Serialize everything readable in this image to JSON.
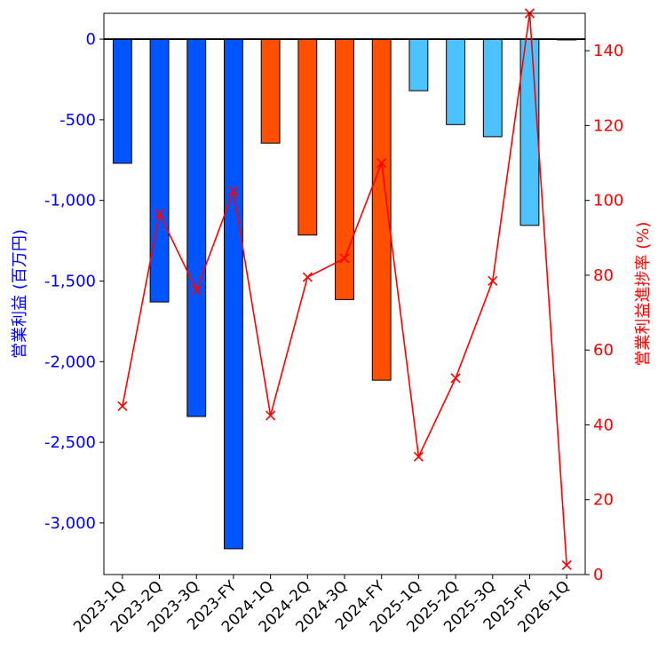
{
  "chart_data": {
    "type": "bar+line",
    "categories": [
      "2023-1Q",
      "2023-2Q",
      "2023-3Q",
      "2023-FY",
      "2024-1Q",
      "2024-2Q",
      "2024-3Q",
      "2024-FY",
      "2025-1Q",
      "2025-2Q",
      "2025-3Q",
      "2025-FY",
      "2026-1Q"
    ],
    "bar_series": {
      "name": "営業利益 (百万円)",
      "values": [
        -770,
        -1630,
        -2340,
        -3160,
        -645,
        -1215,
        -1615,
        -2115,
        -320,
        -530,
        -605,
        -1155,
        -5
      ],
      "colors": [
        "#0055ff",
        "#0055ff",
        "#0055ff",
        "#0055ff",
        "#ff4f00",
        "#ff4f00",
        "#ff4f00",
        "#ff4f00",
        "#4cc3ff",
        "#4cc3ff",
        "#4cc3ff",
        "#4cc3ff",
        "#4cc3ff"
      ]
    },
    "line_series": {
      "name": "営業利益進捗率 (%)",
      "values": [
        45,
        96.5,
        76,
        102.5,
        42.5,
        79.5,
        84.5,
        110,
        31.5,
        52.5,
        78.5,
        150,
        2.5
      ],
      "color": "#ff0000",
      "marker": "x"
    },
    "ylabel_left": "営業利益 (百万円)",
    "ylabel_right": "営業利益進捗率 (%)",
    "ylim_left": [
      -3320,
      160
    ],
    "ylim_right": [
      0,
      150
    ],
    "yticks_left": [
      0,
      -500,
      -1000,
      -1500,
      -2000,
      -2500,
      -3000
    ],
    "yticks_left_labels": [
      "0",
      "-500",
      "-1,000",
      "-1,500",
      "-2,000",
      "-2,500",
      "-3,000"
    ],
    "yticks_right": [
      0,
      20,
      40,
      60,
      80,
      100,
      120,
      140
    ],
    "yticks_right_labels": [
      "0",
      "20",
      "40",
      "60",
      "80",
      "100",
      "120",
      "140"
    ],
    "left_axis_color": "#0000ff",
    "right_axis_color": "#ff0000",
    "grid": false,
    "zero_line": true
  }
}
